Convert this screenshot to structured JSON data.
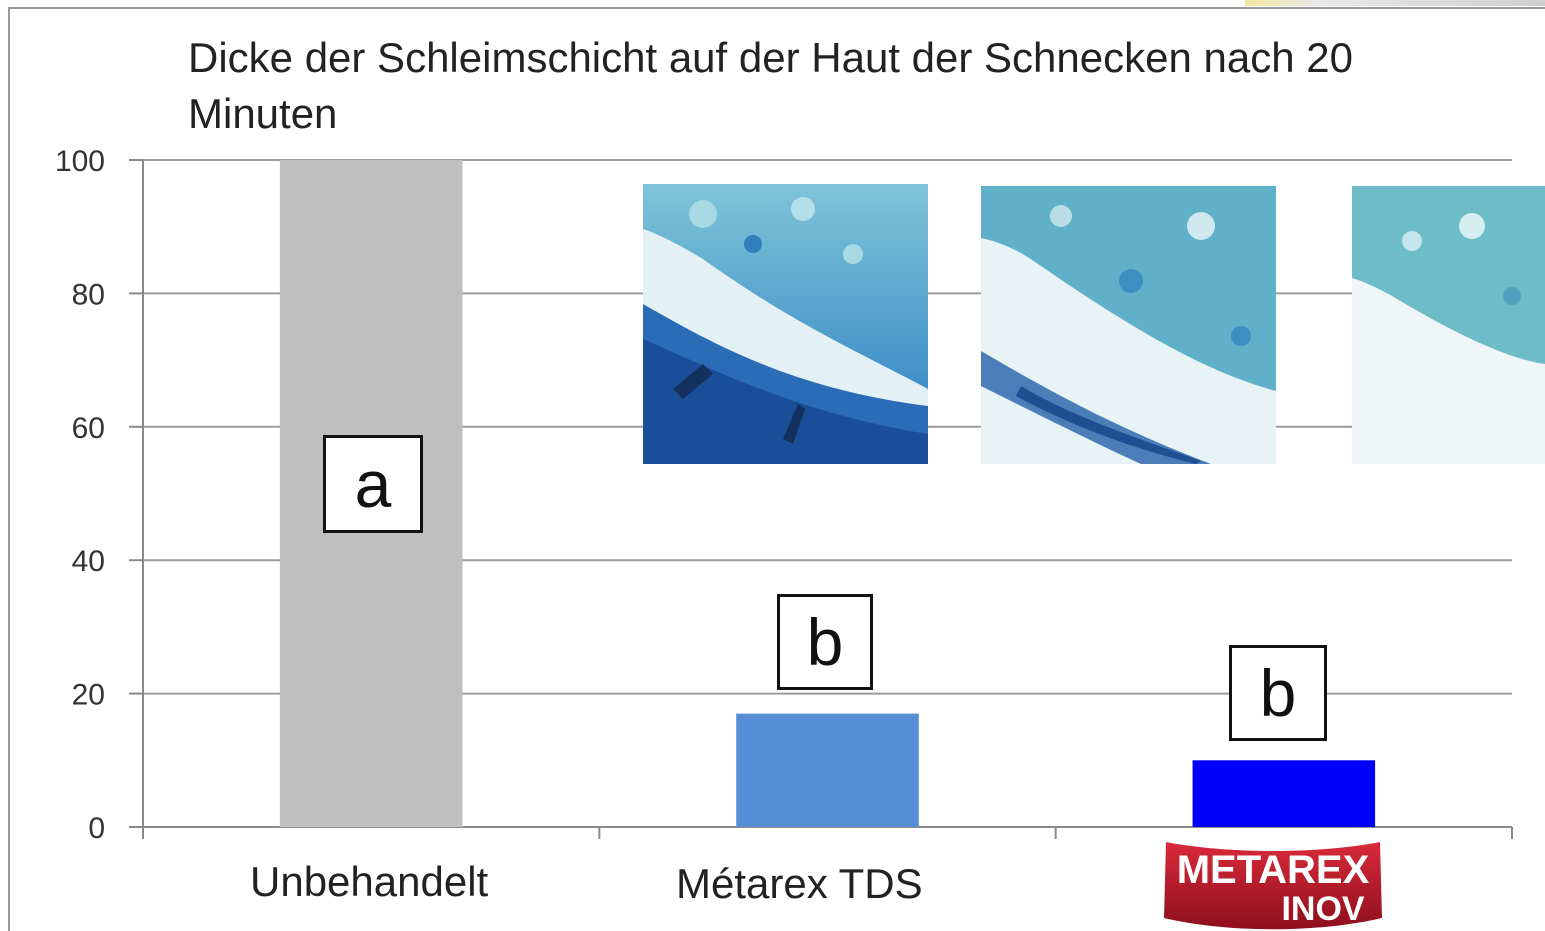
{
  "title": "Dicke der Schleimschicht auf der Haut der Schnecken nach 20 Minuten",
  "chart_data": {
    "type": "bar",
    "title": "Dicke der Schleimschicht auf der Haut der Schnecken nach 20 Minuten",
    "categories": [
      "Unbehandelt",
      "Métarex TDS",
      "METAREX INOV"
    ],
    "values": [
      100,
      17,
      10
    ],
    "letters": [
      "a",
      "b",
      "b"
    ],
    "colors": [
      "#bfbfbf",
      "#558ed5",
      "#0000ff"
    ],
    "ylim": [
      0,
      100
    ],
    "yticks": [
      0,
      20,
      40,
      60,
      80,
      100
    ],
    "grid": true,
    "xlabel": "",
    "ylabel": ""
  },
  "logo": {
    "line1": "METAREX",
    "line2": "INOV"
  },
  "micrographs": [
    "stained-section-untreated",
    "stained-section-metarex-tds",
    "stained-section-metarex-inov"
  ]
}
